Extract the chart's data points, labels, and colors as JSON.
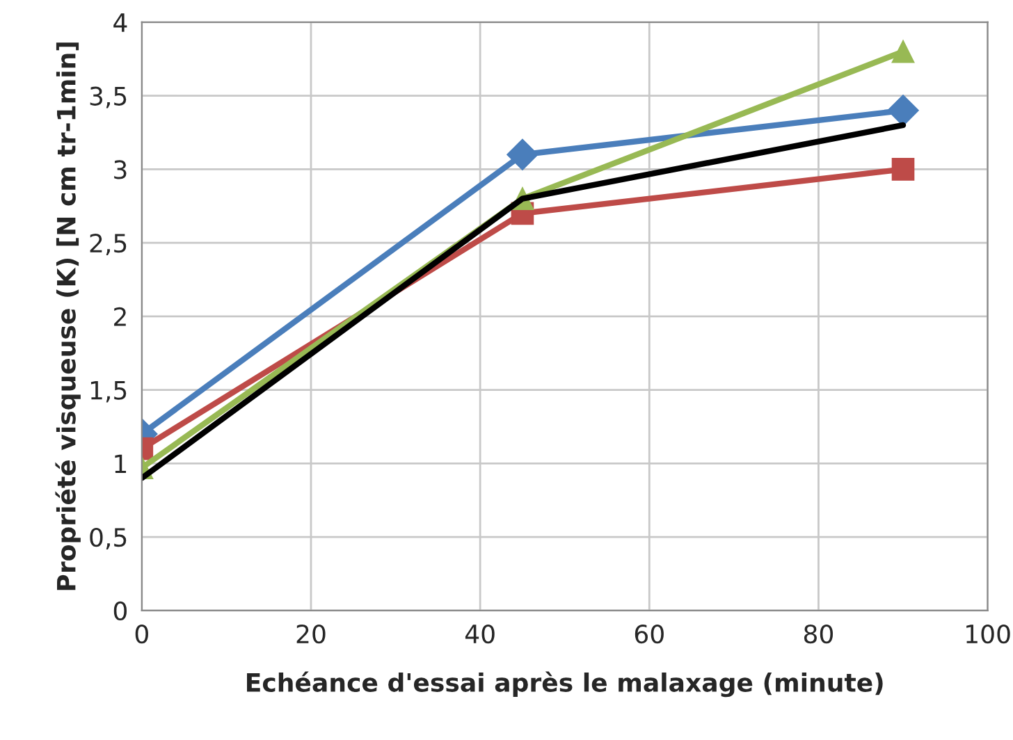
{
  "chart_data": {
    "type": "line",
    "xlabel": "Echéance d'essai après le malaxage (minute)",
    "ylabel": "Propriété visqueuse (K) [N cm tr-1min]",
    "x": [
      0,
      45,
      90
    ],
    "series": [
      {
        "color": "#4a7ebb",
        "values": [
          1.2,
          3.1,
          3.4
        ],
        "marker": "diamond"
      },
      {
        "color": "#be4b48",
        "values": [
          1.1,
          2.7,
          3.0
        ],
        "marker": "square"
      },
      {
        "color": "#98b954",
        "values": [
          0.97,
          2.8,
          3.8
        ],
        "marker": "triangle"
      },
      {
        "color": "#000000",
        "values": [
          0.9,
          2.8,
          3.3
        ],
        "marker": "none"
      }
    ],
    "xlim": [
      0,
      100
    ],
    "xticks": [
      0,
      20,
      40,
      60,
      80,
      100
    ],
    "ylim": [
      0,
      4
    ],
    "yticks": [
      0,
      {
        "value": 0.5,
        "label": "0,5"
      },
      1,
      {
        "value": 1.5,
        "label": "1,5"
      },
      2,
      {
        "value": 2.5,
        "label": "2,5"
      },
      3,
      {
        "value": 3.5,
        "label": "3,5"
      },
      4
    ],
    "grid": true
  }
}
